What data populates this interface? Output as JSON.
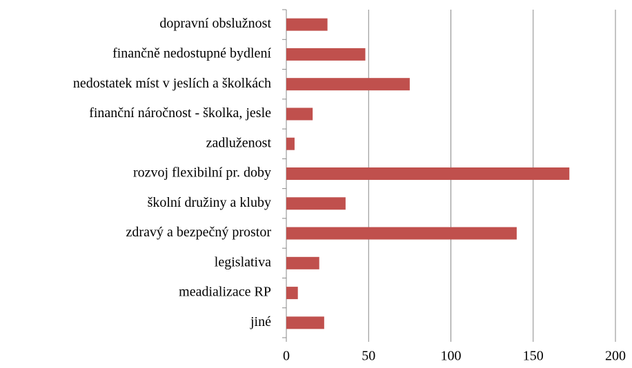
{
  "chart_data": {
    "type": "bar",
    "orientation": "horizontal",
    "categories": [
      "dopravní obslužnost",
      "finančně nedostupné bydlení",
      "nedostatek míst v jeslích a školkách",
      "finanční náročnost - školka, jesle",
      "zadluženost",
      "rozvoj flexibilní pr. doby",
      "školní družiny a kluby",
      "zdravý a bezpečný prostor",
      "legislativa",
      "meadializace RP",
      "jiné"
    ],
    "values": [
      25,
      48,
      75,
      16,
      5,
      172,
      36,
      140,
      20,
      7,
      23
    ],
    "color": "#c0504d",
    "xlim": [
      0,
      200
    ],
    "xticks": [
      0,
      50,
      100,
      150,
      200
    ],
    "grid": true
  }
}
